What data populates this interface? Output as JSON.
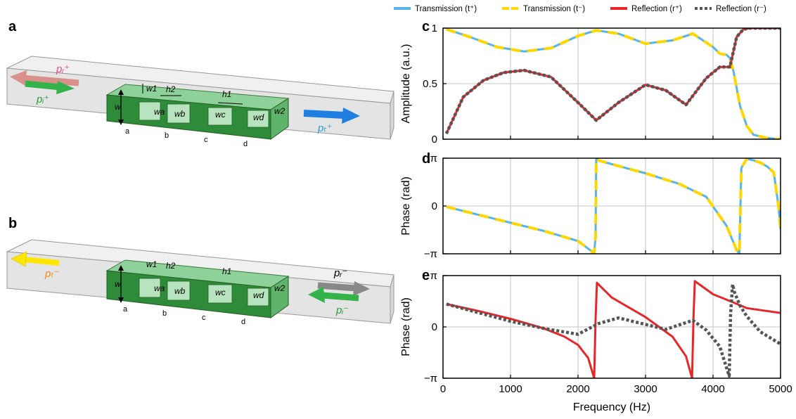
{
  "panels": {
    "a": "a",
    "b": "b",
    "c": "c",
    "d": "d",
    "e": "e"
  },
  "schematic": {
    "slot_labels": [
      "a",
      "b",
      "c",
      "d"
    ],
    "dims": {
      "w": "w",
      "w1": "w1",
      "w2": "w2",
      "h1": "h1",
      "h2": "h2",
      "wa": "wa",
      "wb": "wb",
      "wc": "wc",
      "wd": "wd"
    },
    "wave_labels_a": {
      "pr_plus": "pᵣ⁺",
      "pi_plus": "pᵢ⁺",
      "pt_plus": "pₜ⁺"
    },
    "wave_labels_b": {
      "pt_minus": "pₜ⁻",
      "pr_minus": "pᵣ⁻",
      "pi_minus": "pᵢ⁻"
    },
    "colors": {
      "waveguide": "#e8e8e8",
      "resonator_dark": "#2e8b3a",
      "resonator_light": "#8fd19a",
      "arrow_red": "#d9908c",
      "arrow_green": "#33b34a",
      "arrow_blue": "#1f7fe0",
      "arrow_yellow": "#ffe600",
      "arrow_gray": "#888888"
    }
  },
  "legend": [
    {
      "label": "Transmission (t⁺)",
      "color": "#56b4e9",
      "style": "solid"
    },
    {
      "label": "Transmission (t⁻)",
      "color": "#ffd700",
      "style": "dashed"
    },
    {
      "label": "Reflection (r⁺)",
      "color": "#e8262a",
      "style": "solid"
    },
    {
      "label": "Reflection (r⁻)",
      "color": "#555555",
      "style": "dotted"
    }
  ],
  "chart_data": [
    {
      "panel": "c",
      "type": "line",
      "ylabel": "Amplitude (a.u.)",
      "xlabel": "",
      "xlim": [
        0,
        5000
      ],
      "ylim": [
        0,
        1
      ],
      "yticks": [
        0,
        0.5,
        1
      ],
      "ytick_labels": [
        "0",
        "0.5",
        "1"
      ],
      "grid": true,
      "series": [
        {
          "name": "Transmission (t⁺)",
          "color": "#56b4e9",
          "x": [
            50,
            400,
            800,
            1200,
            1600,
            2000,
            2270,
            2600,
            3000,
            3400,
            3700,
            4000,
            4100,
            4200,
            4250,
            4300,
            4400,
            4500,
            4600,
            4800,
            5000
          ],
          "y": [
            0.99,
            0.92,
            0.83,
            0.79,
            0.82,
            0.93,
            0.98,
            0.95,
            0.86,
            0.89,
            0.95,
            0.83,
            0.77,
            0.76,
            0.73,
            0.62,
            0.3,
            0.12,
            0.04,
            0.01,
            0.0
          ]
        },
        {
          "name": "Transmission (t⁻)",
          "color": "#ffd700",
          "x": [
            50,
            400,
            800,
            1200,
            1600,
            2000,
            2270,
            2600,
            3000,
            3400,
            3700,
            4000,
            4100,
            4200,
            4250,
            4300,
            4400,
            4500,
            4600,
            4800,
            5000
          ],
          "y": [
            0.99,
            0.92,
            0.83,
            0.79,
            0.82,
            0.93,
            0.98,
            0.95,
            0.86,
            0.89,
            0.95,
            0.83,
            0.77,
            0.76,
            0.73,
            0.62,
            0.3,
            0.12,
            0.04,
            0.01,
            0.0
          ]
        },
        {
          "name": "Reflection (r⁺)",
          "color": "#e8262a",
          "x": [
            50,
            300,
            600,
            900,
            1200,
            1600,
            2000,
            2270,
            2600,
            3000,
            3300,
            3600,
            3900,
            4100,
            4250,
            4350,
            4450,
            4550,
            4700,
            5000
          ],
          "y": [
            0.05,
            0.38,
            0.53,
            0.6,
            0.62,
            0.56,
            0.33,
            0.17,
            0.33,
            0.49,
            0.44,
            0.31,
            0.55,
            0.65,
            0.65,
            0.92,
            0.99,
            1.0,
            1.0,
            1.0
          ]
        },
        {
          "name": "Reflection (r⁻)",
          "color": "#555555",
          "x": [
            50,
            300,
            600,
            900,
            1200,
            1600,
            2000,
            2270,
            2600,
            3000,
            3300,
            3600,
            3900,
            4100,
            4250,
            4350,
            4450,
            4550,
            4700,
            5000
          ],
          "y": [
            0.05,
            0.38,
            0.53,
            0.6,
            0.62,
            0.56,
            0.33,
            0.17,
            0.33,
            0.49,
            0.44,
            0.31,
            0.55,
            0.65,
            0.65,
            0.92,
            0.99,
            1.0,
            1.0,
            1.0
          ]
        }
      ]
    },
    {
      "panel": "d",
      "type": "line",
      "ylabel": "Phase (rad)",
      "xlabel": "",
      "xlim": [
        0,
        5000
      ],
      "ylim": [
        -3.1416,
        3.1416
      ],
      "yticks": [
        -3.1416,
        0,
        3.1416
      ],
      "ytick_labels": [
        "−π",
        "0",
        "π"
      ],
      "grid": true,
      "series": [
        {
          "name": "Transmission (t⁺)",
          "color": "#56b4e9",
          "x": [
            50,
            500,
            1000,
            1500,
            2000,
            2240,
            2260,
            2270,
            2300,
            2500,
            3000,
            3500,
            3900,
            4200,
            4350,
            4390,
            4420,
            4500,
            4600,
            4700,
            4800,
            4900,
            4970,
            5000
          ],
          "y": [
            -0.05,
            -0.55,
            -1.1,
            -1.65,
            -2.3,
            -3.1,
            -2.0,
            3.14,
            3.0,
            2.75,
            2.15,
            1.45,
            0.6,
            -1.3,
            -2.9,
            -3.14,
            2.5,
            3.1,
            3.0,
            2.85,
            2.6,
            2.2,
            0.0,
            -1.5
          ]
        },
        {
          "name": "Transmission (t⁻)",
          "color": "#ffd700",
          "x": [
            50,
            500,
            1000,
            1500,
            2000,
            2240,
            2260,
            2270,
            2300,
            2500,
            3000,
            3500,
            3900,
            4200,
            4350,
            4390,
            4420,
            4500,
            4600,
            4700,
            4800,
            4900,
            4970,
            5000
          ],
          "y": [
            -0.05,
            -0.55,
            -1.1,
            -1.65,
            -2.3,
            -3.1,
            -2.0,
            3.14,
            3.0,
            2.75,
            2.15,
            1.45,
            0.6,
            -1.3,
            -2.9,
            -3.14,
            2.5,
            3.1,
            3.0,
            2.85,
            2.6,
            2.2,
            0.0,
            -1.5
          ]
        }
      ]
    },
    {
      "panel": "e",
      "type": "line",
      "ylabel": "Phase (rad)",
      "xlabel": "Frequency (Hz)",
      "xlim": [
        0,
        5000
      ],
      "ylim": [
        -3.1416,
        3.1416
      ],
      "yticks": [
        -3.1416,
        0,
        3.1416
      ],
      "ytick_labels": [
        "−π",
        "0",
        "π"
      ],
      "xticks": [
        0,
        1000,
        2000,
        3000,
        4000,
        5000
      ],
      "xtick_labels": [
        "0",
        "1000",
        "2000",
        "3000",
        "4000",
        "5000"
      ],
      "grid": true,
      "series": [
        {
          "name": "Reflection (r⁺)",
          "color": "#e8262a",
          "x": [
            50,
            500,
            1000,
            1500,
            1800,
            2000,
            2150,
            2240,
            2260,
            2280,
            2500,
            3000,
            3400,
            3600,
            3690,
            3710,
            3730,
            4000,
            4300,
            4500,
            5000
          ],
          "y": [
            1.4,
            1.0,
            0.5,
            -0.1,
            -0.6,
            -1.1,
            -1.9,
            -3.14,
            0.5,
            2.7,
            1.8,
            0.6,
            -0.6,
            -1.8,
            -3.14,
            0.5,
            2.8,
            2.0,
            1.5,
            1.15,
            0.85
          ]
        },
        {
          "name": "Reflection (r⁻)",
          "color": "#555555",
          "x": [
            50,
            500,
            1000,
            1500,
            2000,
            2300,
            2600,
            3000,
            3300,
            3700,
            3900,
            4100,
            4200,
            4240,
            4260,
            4290,
            4320,
            4400,
            4500,
            4700,
            5000
          ],
          "y": [
            1.4,
            0.9,
            0.35,
            -0.1,
            -0.45,
            0.2,
            0.55,
            0.15,
            -0.15,
            0.4,
            -0.2,
            -1.2,
            -2.5,
            -3.0,
            0.8,
            2.6,
            2.1,
            1.3,
            0.65,
            -0.3,
            -1.05
          ]
        }
      ]
    }
  ]
}
